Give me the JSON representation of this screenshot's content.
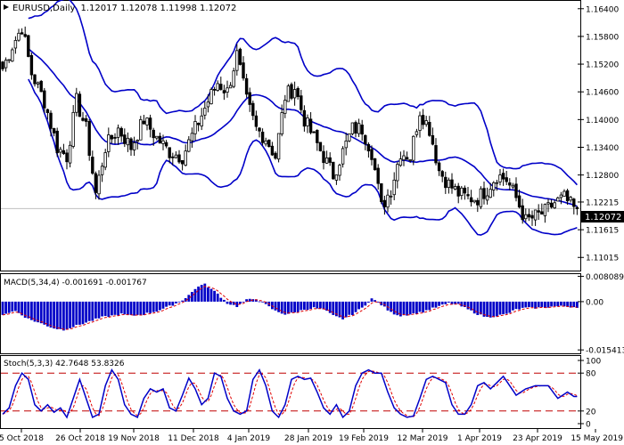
{
  "chart_data": [
    {
      "type": "candlestick",
      "symbol": "EURUSD,Daily",
      "ohlc_text": "1.12017 1.12078 1.11998 1.12072",
      "current_price": "1.12072",
      "y_ticks": [
        "1.16400",
        "1.15800",
        "1.15200",
        "1.14600",
        "1.14000",
        "1.13400",
        "1.12800",
        "1.12215",
        "1.11615",
        "1.11015"
      ],
      "ylim": [
        1.1075,
        1.1655
      ],
      "x_ticks": [
        "5 Oct 2018",
        "26 Oct 2018",
        "19 Nov 2018",
        "11 Dec 2018",
        "4 Jan 2019",
        "28 Jan 2019",
        "19 Feb 2019",
        "12 Mar 2019",
        "1 Apr 2019",
        "23 Apr 2019",
        "15 May 2019"
      ],
      "close_anchors": [
        [
          0,
          1.151
        ],
        [
          3,
          1.156
        ],
        [
          6,
          1.16
        ],
        [
          9,
          1.15
        ],
        [
          13,
          1.144
        ],
        [
          17,
          1.134
        ],
        [
          20,
          1.132
        ],
        [
          23,
          1.144
        ],
        [
          26,
          1.138
        ],
        [
          29,
          1.124
        ],
        [
          32,
          1.134
        ],
        [
          36,
          1.138
        ],
        [
          40,
          1.134
        ],
        [
          44,
          1.14
        ],
        [
          48,
          1.136
        ],
        [
          52,
          1.133
        ],
        [
          56,
          1.132
        ],
        [
          60,
          1.138
        ],
        [
          64,
          1.144
        ],
        [
          67,
          1.148
        ],
        [
          70,
          1.146
        ],
        [
          73,
          1.154
        ],
        [
          76,
          1.144
        ],
        [
          79,
          1.138
        ],
        [
          82,
          1.136
        ],
        [
          85,
          1.132
        ],
        [
          88,
          1.145
        ],
        [
          91,
          1.147
        ],
        [
          94,
          1.14
        ],
        [
          97,
          1.136
        ],
        [
          100,
          1.132
        ],
        [
          103,
          1.128
        ],
        [
          106,
          1.133
        ],
        [
          109,
          1.138
        ],
        [
          112,
          1.138
        ],
        [
          115,
          1.133
        ],
        [
          118,
          1.121
        ],
        [
          121,
          1.125
        ],
        [
          124,
          1.133
        ],
        [
          127,
          1.132
        ],
        [
          130,
          1.142
        ],
        [
          133,
          1.138
        ],
        [
          136,
          1.129
        ],
        [
          139,
          1.126
        ],
        [
          142,
          1.124
        ],
        [
          145,
          1.123
        ],
        [
          148,
          1.123
        ],
        [
          151,
          1.125
        ],
        [
          154,
          1.128
        ],
        [
          157,
          1.127
        ],
        [
          160,
          1.123
        ],
        [
          163,
          1.118
        ],
        [
          166,
          1.119
        ],
        [
          169,
          1.12
        ],
        [
          172,
          1.122
        ],
        [
          175,
          1.123
        ],
        [
          178,
          1.1207
        ]
      ],
      "indicators": [
        "Bollinger Bands"
      ],
      "colors": {
        "bull": "#000000",
        "bear": "#000000",
        "bands": "#0000c8",
        "grid": "#c0c0c0"
      }
    },
    {
      "type": "bar",
      "title": "MACD(5,34,4) -0.001691 -0.001767",
      "y_ticks": [
        "0.008089",
        "0.00",
        "-0.015413"
      ],
      "ylim": [
        -0.0165,
        0.0085
      ],
      "signal_line": "red dashed",
      "hist_anchors": [
        [
          0,
          -0.004
        ],
        [
          4,
          -0.003
        ],
        [
          8,
          -0.0055
        ],
        [
          12,
          -0.007
        ],
        [
          16,
          -0.0085
        ],
        [
          19,
          -0.009
        ],
        [
          22,
          -0.008
        ],
        [
          25,
          -0.007
        ],
        [
          28,
          -0.006
        ],
        [
          31,
          -0.005
        ],
        [
          34,
          -0.0045
        ],
        [
          37,
          -0.004
        ],
        [
          40,
          -0.0045
        ],
        [
          44,
          -0.004
        ],
        [
          48,
          -0.003
        ],
        [
          52,
          -0.0015
        ],
        [
          56,
          0.0005
        ],
        [
          59,
          0.003
        ],
        [
          61,
          0.005
        ],
        [
          63,
          0.0055
        ],
        [
          65,
          0.004
        ],
        [
          67,
          0.0025
        ],
        [
          70,
          -0.0005
        ],
        [
          73,
          -0.0015
        ],
        [
          76,
          0.0005
        ],
        [
          79,
          0.001
        ],
        [
          82,
          -0.001
        ],
        [
          85,
          -0.003
        ],
        [
          88,
          -0.004
        ],
        [
          91,
          -0.0035
        ],
        [
          94,
          -0.0025
        ],
        [
          97,
          -0.002
        ],
        [
          100,
          -0.0025
        ],
        [
          103,
          -0.0045
        ],
        [
          106,
          -0.0055
        ],
        [
          109,
          -0.004
        ],
        [
          112,
          -0.002
        ],
        [
          115,
          0.001
        ],
        [
          118,
          -0.001
        ],
        [
          121,
          -0.0035
        ],
        [
          124,
          -0.0045
        ],
        [
          127,
          -0.004
        ],
        [
          130,
          -0.0035
        ],
        [
          133,
          -0.0025
        ],
        [
          136,
          -0.0015
        ],
        [
          139,
          -0.0005
        ],
        [
          142,
          -0.001
        ],
        [
          145,
          -0.0025
        ],
        [
          148,
          -0.004
        ],
        [
          151,
          -0.005
        ],
        [
          154,
          -0.0045
        ],
        [
          157,
          -0.004
        ],
        [
          160,
          -0.0025
        ],
        [
          163,
          -0.002
        ],
        [
          166,
          -0.002
        ],
        [
          169,
          -0.0018
        ],
        [
          172,
          -0.0015
        ],
        [
          175,
          -0.0015
        ],
        [
          178,
          -0.0017
        ]
      ]
    },
    {
      "type": "line",
      "title": "Stoch(5,3,3) 42.7648 53.8326",
      "y_ticks": [
        "100",
        "80",
        "20",
        "0"
      ],
      "ylim": [
        0,
        100
      ],
      "levels": [
        80,
        20
      ],
      "series": [
        {
          "style": "solid blue",
          "anchors": [
            [
              0,
              15
            ],
            [
              2,
              25
            ],
            [
              4,
              60
            ],
            [
              6,
              80
            ],
            [
              8,
              70
            ],
            [
              10,
              30
            ],
            [
              12,
              20
            ],
            [
              14,
              30
            ],
            [
              16,
              18
            ],
            [
              18,
              25
            ],
            [
              20,
              10
            ],
            [
              22,
              40
            ],
            [
              24,
              70
            ],
            [
              26,
              40
            ],
            [
              28,
              10
            ],
            [
              30,
              15
            ],
            [
              32,
              60
            ],
            [
              34,
              85
            ],
            [
              36,
              70
            ],
            [
              38,
              30
            ],
            [
              40,
              15
            ],
            [
              42,
              10
            ],
            [
              44,
              40
            ],
            [
              46,
              55
            ],
            [
              48,
              50
            ],
            [
              50,
              55
            ],
            [
              52,
              25
            ],
            [
              54,
              20
            ],
            [
              56,
              45
            ],
            [
              58,
              72
            ],
            [
              60,
              55
            ],
            [
              62,
              30
            ],
            [
              64,
              40
            ],
            [
              66,
              80
            ],
            [
              68,
              75
            ],
            [
              70,
              40
            ],
            [
              72,
              20
            ],
            [
              74,
              15
            ],
            [
              76,
              20
            ],
            [
              78,
              70
            ],
            [
              80,
              85
            ],
            [
              82,
              60
            ],
            [
              84,
              20
            ],
            [
              86,
              10
            ],
            [
              88,
              30
            ],
            [
              90,
              70
            ],
            [
              92,
              75
            ],
            [
              94,
              70
            ],
            [
              96,
              72
            ],
            [
              98,
              50
            ],
            [
              100,
              25
            ],
            [
              102,
              15
            ],
            [
              104,
              30
            ],
            [
              106,
              10
            ],
            [
              108,
              20
            ],
            [
              110,
              60
            ],
            [
              112,
              80
            ],
            [
              114,
              85
            ],
            [
              116,
              80
            ],
            [
              118,
              80
            ],
            [
              120,
              50
            ],
            [
              122,
              25
            ],
            [
              124,
              15
            ],
            [
              126,
              10
            ],
            [
              128,
              12
            ],
            [
              130,
              40
            ],
            [
              132,
              70
            ],
            [
              134,
              75
            ],
            [
              136,
              70
            ],
            [
              138,
              65
            ],
            [
              140,
              30
            ],
            [
              142,
              15
            ],
            [
              144,
              15
            ],
            [
              146,
              30
            ],
            [
              148,
              60
            ],
            [
              150,
              65
            ],
            [
              152,
              55
            ],
            [
              154,
              65
            ],
            [
              156,
              75
            ],
            [
              158,
              60
            ],
            [
              160,
              45
            ],
            [
              163,
              55
            ],
            [
              166,
              60
            ],
            [
              170,
              60
            ],
            [
              173,
              40
            ],
            [
              176,
              50
            ],
            [
              178,
              43
            ]
          ]
        },
        {
          "style": "dashed red",
          "lag": 2
        }
      ]
    }
  ]
}
